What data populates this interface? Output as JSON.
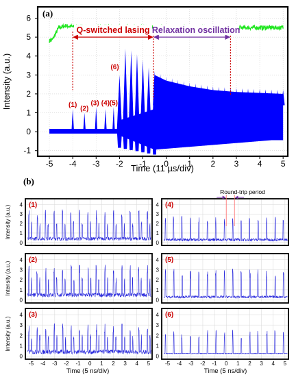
{
  "colors": {
    "green": "#22e622",
    "blue": "#0000ff",
    "trace_blue": "#2a2adc",
    "red": "#cc0000",
    "purple": "#7030a0",
    "label_red": "#cc0000",
    "axis": "#000000"
  },
  "chart_data": [
    {
      "type": "line",
      "panel_label": "(a)",
      "xlabel": "Time (11 µs/div)",
      "ylabel": "Intensity (a.u.)",
      "xlim": [
        -5.5,
        5.2
      ],
      "ylim": [
        -1.3,
        6.6
      ],
      "xticks": [
        -5,
        -4,
        -3,
        -2,
        -1,
        0,
        1,
        2,
        3,
        4,
        5
      ],
      "yticks": [
        -1,
        0,
        1,
        2,
        3,
        4,
        5,
        6
      ],
      "grid": true,
      "pump_trace": {
        "x": [
          -5.0,
          -4.85,
          -4.6,
          -4.3,
          -4.0,
          0.0,
          4.0,
          5.0
        ],
        "y": [
          4.8,
          4.9,
          5.5,
          5.6,
          5.55,
          5.5,
          5.5,
          5.5
        ]
      },
      "pulse_peaks": {
        "x": [
          -4.0,
          -3.5,
          -3.0,
          -2.6,
          -2.25,
          -2.0,
          -1.75,
          -1.5,
          -1.25,
          -1.0,
          -0.75,
          -0.5
        ],
        "y": [
          1.2,
          1.0,
          1.3,
          1.2,
          1.3,
          3.0,
          4.4,
          4.3,
          4.1,
          3.8,
          3.4,
          3.0
        ]
      },
      "relaxation_envelope": {
        "x": [
          -0.5,
          0.0,
          1.0,
          2.0,
          3.0,
          4.0,
          5.0
        ],
        "y": [
          3.0,
          2.7,
          2.4,
          2.2,
          2.1,
          2.05,
          2.0
        ]
      },
      "annotations": [
        {
          "text": "Q-switched lasing",
          "x_from": -4.0,
          "x_to": -0.55
        },
        {
          "text": "Relaxation oscillation",
          "x_from": -0.55,
          "x_to": 2.75
        }
      ],
      "peak_labels": [
        {
          "text": "(1)",
          "x": -4.0,
          "y": 1.2
        },
        {
          "text": "(2)",
          "x": -3.5,
          "y": 1.0
        },
        {
          "text": "(3)",
          "x": -3.05,
          "y": 1.3
        },
        {
          "text": "(4)",
          "x": -2.6,
          "y": 1.3
        },
        {
          "text": "(5)",
          "x": -2.25,
          "y": 1.3
        },
        {
          "text": "(6)",
          "x": -2.2,
          "y": 3.2
        }
      ]
    },
    {
      "type": "line",
      "panel_label": "(b)",
      "layout": "grid-3x2",
      "xlabel": "Time (5 ns/div)",
      "ylabel": "Intensity (a.u.)",
      "xlim": [
        -5.5,
        5.3
      ],
      "ylim": [
        -0.3,
        4.6
      ],
      "xticks": [
        -5,
        -4,
        -3,
        -2,
        -1,
        0,
        1,
        2,
        3,
        4,
        5
      ],
      "yticks": [
        0,
        1,
        2,
        3,
        4
      ],
      "round_trip_label": "Round-trip period",
      "round_trip_marks": [
        0.0,
        0.7
      ],
      "subplots": [
        {
          "label": "(1)",
          "peak_mean": 3.0,
          "base": 0.4,
          "spacing": 0.72,
          "noise": 0.6,
          "double": true
        },
        {
          "label": "(2)",
          "peak_mean": 3.0,
          "base": 0.5,
          "spacing": 0.72,
          "noise": 0.7,
          "double": true
        },
        {
          "label": "(3)",
          "peak_mean": 2.7,
          "base": 0.4,
          "spacing": 0.72,
          "noise": 0.7,
          "double": true
        },
        {
          "label": "(4)",
          "peak_mean": 2.3,
          "base": 0.3,
          "spacing": 0.72,
          "noise": 0.5,
          "double": false
        },
        {
          "label": "(5)",
          "peak_mean": 2.6,
          "base": 0.3,
          "spacing": 0.72,
          "noise": 0.4,
          "double": false
        },
        {
          "label": "(6)",
          "peak_mean": 2.0,
          "base": 0.25,
          "spacing": 0.72,
          "noise": 0.1,
          "double": false
        }
      ]
    }
  ]
}
